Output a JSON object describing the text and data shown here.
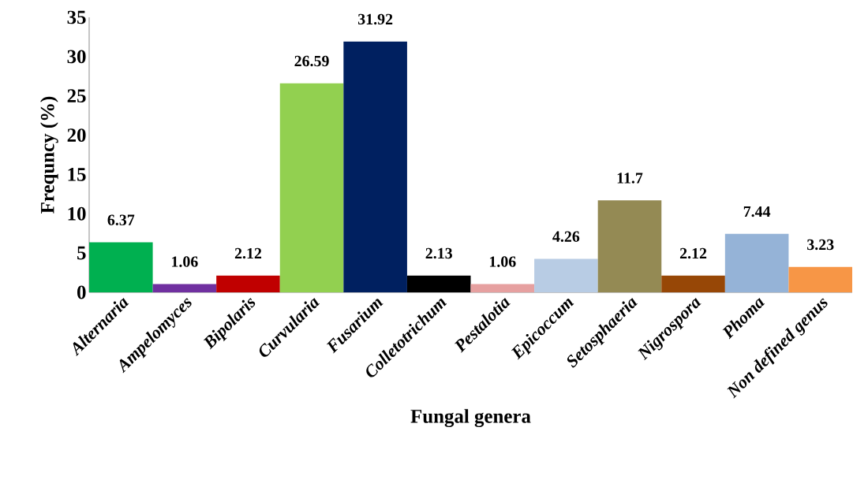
{
  "chart_data": {
    "type": "bar",
    "xlabel": "Fungal genera",
    "ylabel": "Frequncy (%)",
    "categories": [
      "Alternaria",
      "Ampelomyces",
      "Bipolaris",
      "Curvularia",
      "Fusarium",
      "Colletotrichum",
      "Pestalotia",
      "Epicoccum",
      "Setosphaeria",
      "Nigrospora",
      "Phoma",
      "Non defined genus"
    ],
    "values": [
      6.37,
      1.06,
      2.12,
      26.59,
      31.92,
      2.13,
      1.06,
      4.26,
      11.7,
      2.12,
      7.44,
      3.23
    ],
    "colors": [
      "#00b050",
      "#7030a0",
      "#c00000",
      "#92d050",
      "#002060",
      "#000000",
      "#e6a0a0",
      "#b8cce4",
      "#948a54",
      "#974706",
      "#95b3d7",
      "#f79646"
    ],
    "ylim": [
      0,
      35
    ],
    "yticks": [
      0,
      5,
      10,
      15,
      20,
      25,
      30,
      35
    ],
    "data_labels": true
  }
}
